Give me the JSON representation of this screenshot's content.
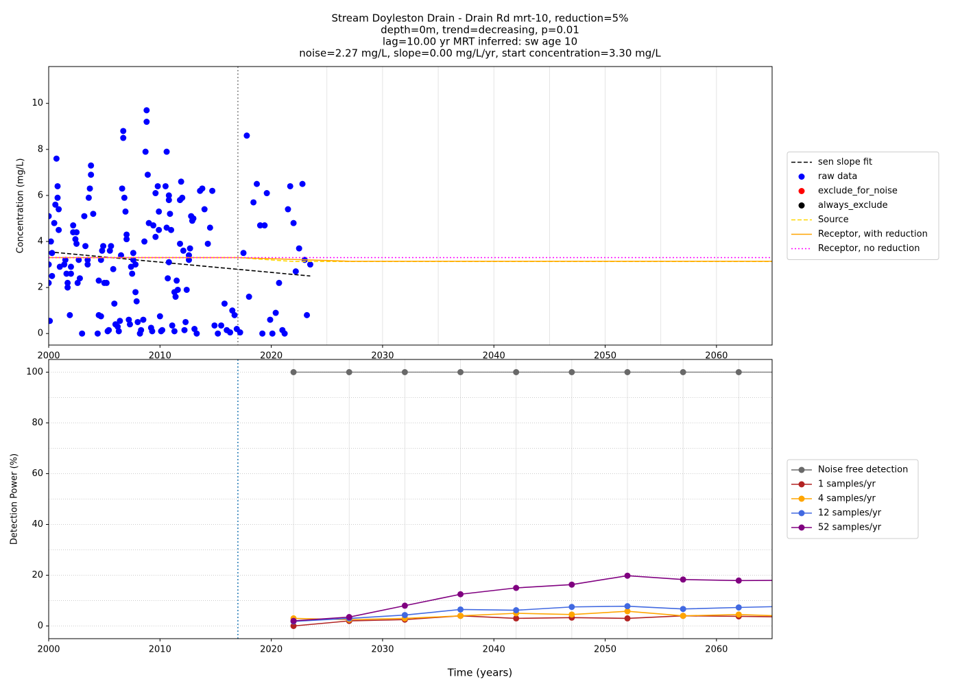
{
  "chart_data": [
    {
      "type": "scatter",
      "title": [
        "Stream Doyleston Drain - Drain Rd mrt-10, reduction=5%",
        "depth=0m, trend=decreasing, p=0.01",
        "lag=10.00 yr MRT inferred: sw age 10",
        "noise=2.27 mg/L, slope=0.00 mg/L/yr, start concentration=3.30 mg/L"
      ],
      "ylabel": "Concentration (mg/L)",
      "xlim": [
        2000,
        2065
      ],
      "ylim": [
        -0.5,
        11.6
      ],
      "xticks": [
        2000,
        2010,
        2020,
        2030,
        2040,
        2050,
        2060
      ],
      "yticks": [
        0,
        2,
        4,
        6,
        8,
        10
      ],
      "x_grid": [
        2025,
        2030,
        2035,
        2040,
        2045,
        2050,
        2055,
        2060
      ],
      "vline": {
        "x": 2017,
        "color": "#808080"
      },
      "legend_loc": "outside right",
      "series": [
        {
          "name": "sen slope fit",
          "style": "dashed",
          "color": "#000000",
          "x": [
            2000,
            2023.5
          ],
          "values": [
            3.55,
            2.5
          ]
        },
        {
          "name": "raw data",
          "style": "scatter",
          "color": "#0000ff",
          "x": [
            2000,
            2000,
            2000,
            2000.1,
            2000.2,
            2000.3,
            2000.3,
            2000.5,
            2000.6,
            2000.7,
            2000.8,
            2000.8,
            2000.9,
            2000.9,
            2001.0,
            2001.4,
            2001.5,
            2001.6,
            2001.7,
            2001.7,
            2001.9,
            2002.0,
            2002.0,
            2002.2,
            2002.2,
            2002.4,
            2002.5,
            2002.5,
            2002.6,
            2002.7,
            2002.8,
            2003.0,
            2003.2,
            2003.3,
            2003.5,
            2003.5,
            2003.6,
            2003.7,
            2003.8,
            2003.8,
            2004.0,
            2004.4,
            2004.5,
            2004.5,
            2004.7,
            2004.7,
            2004.8,
            2004.9,
            2005.0,
            2005.2,
            2005.3,
            2005.4,
            2005.5,
            2005.6,
            2005.8,
            2005.9,
            2006.0,
            2006.2,
            2006.3,
            2006.4,
            2006.5,
            2006.6,
            2006.7,
            2006.7,
            2006.8,
            2006.9,
            2007.0,
            2007.0,
            2007.2,
            2007.3,
            2007.4,
            2007.5,
            2007.6,
            2007.6,
            2007.8,
            2007.8,
            2007.9,
            2008.0,
            2008.2,
            2008.3,
            2008.5,
            2008.6,
            2008.7,
            2008.8,
            2008.8,
            2008.9,
            2009.0,
            2009.2,
            2009.3,
            2009.4,
            2009.6,
            2009.6,
            2009.8,
            2009.9,
            2009.9,
            2010.0,
            2010.1,
            2010.2,
            2010.5,
            2010.6,
            2010.6,
            2010.7,
            2010.8,
            2010.8,
            2010.8,
            2010.9,
            2011.0,
            2011.1,
            2011.3,
            2011.3,
            2011.4,
            2011.5,
            2011.6,
            2011.8,
            2011.8,
            2011.9,
            2012.0,
            2012.1,
            2012.2,
            2012.3,
            2012.4,
            2012.6,
            2012.6,
            2012.7,
            2012.8,
            2012.9,
            2013.0,
            2013.1,
            2013.3,
            2013.6,
            2013.8,
            2014.0,
            2014.3,
            2014.5,
            2014.7,
            2014.9,
            2015.2,
            2015.5,
            2015.8,
            2016.0,
            2016.3,
            2016.5,
            2016.7,
            2016.9,
            2017.2,
            2017.5,
            2017.8,
            2018.0,
            2018.4,
            2018.7,
            2019.0,
            2019.2,
            2019.4,
            2019.6,
            2019.9,
            2020.1,
            2020.4,
            2020.7,
            2021.0,
            2021.2,
            2021.5,
            2021.7,
            2022.0,
            2022.2,
            2022.5,
            2022.8,
            2023.0,
            2023.2,
            2023.5
          ],
          "values": [
            5.1,
            3.0,
            2.2,
            0.55,
            4.0,
            3.5,
            2.5,
            4.8,
            5.6,
            7.6,
            6.4,
            5.9,
            5.4,
            4.5,
            2.9,
            3.0,
            3.2,
            2.6,
            2.0,
            2.2,
            0.8,
            2.9,
            2.6,
            4.7,
            4.4,
            4.1,
            4.4,
            3.9,
            2.2,
            3.2,
            2.4,
            0.0,
            5.1,
            3.8,
            3.2,
            3.0,
            5.9,
            6.3,
            7.3,
            6.9,
            5.2,
            0.0,
            2.3,
            0.8,
            0.75,
            3.2,
            3.6,
            3.8,
            2.2,
            2.2,
            0.1,
            0.15,
            3.6,
            3.8,
            2.8,
            1.3,
            0.4,
            0.3,
            0.1,
            0.55,
            3.4,
            6.3,
            8.8,
            8.5,
            5.9,
            5.3,
            4.3,
            4.1,
            0.6,
            0.4,
            2.9,
            2.6,
            3.5,
            3.2,
            3.0,
            1.8,
            1.4,
            0.5,
            0.0,
            0.15,
            0.6,
            4.0,
            7.9,
            9.7,
            9.2,
            6.9,
            4.8,
            0.25,
            0.1,
            4.7,
            6.1,
            4.2,
            6.4,
            5.3,
            4.5,
            0.75,
            0.1,
            0.15,
            6.4,
            4.6,
            7.9,
            2.4,
            6.0,
            5.8,
            3.1,
            5.2,
            4.5,
            0.35,
            0.1,
            1.8,
            1.6,
            2.3,
            1.9,
            3.9,
            5.8,
            6.6,
            5.9,
            3.6,
            0.15,
            0.5,
            1.9,
            3.4,
            3.2,
            3.7,
            5.1,
            4.9,
            5.0,
            0.2,
            0.0,
            6.2,
            6.3,
            5.4,
            3.9,
            4.6,
            6.2,
            0.35,
            0.0,
            0.35,
            1.3,
            0.15,
            0.05,
            1.0,
            0.8,
            0.2,
            0.05,
            3.5,
            8.6,
            1.6,
            5.7,
            6.5,
            4.7,
            0.0,
            4.7,
            6.1,
            0.6,
            0.0,
            0.9,
            2.2,
            0.15,
            0.0,
            5.4,
            6.4,
            4.8,
            2.7,
            3.7,
            6.5,
            3.2,
            0.8,
            3.0
          ]
        },
        {
          "name": "exclude_for_noise",
          "style": "scatter",
          "color": "#ff0000",
          "x": [],
          "values": []
        },
        {
          "name": "always_exclude",
          "style": "scatter",
          "color": "#000000",
          "x": [],
          "values": []
        },
        {
          "name": "Source",
          "style": "dashed",
          "color": "#ffd700",
          "x": [
            2000,
            2017,
            2022,
            2065
          ],
          "values": [
            3.3,
            3.3,
            3.13,
            3.13
          ]
        },
        {
          "name": "Receptor, with reduction",
          "style": "solid",
          "color": "#ffa500",
          "x": [
            2000,
            2017,
            2027,
            2065
          ],
          "values": [
            3.3,
            3.3,
            3.14,
            3.14
          ]
        },
        {
          "name": "Receptor, no reduction",
          "style": "dotted",
          "color": "#ff00ff",
          "x": [
            2000,
            2065
          ],
          "values": [
            3.3,
            3.3
          ]
        }
      ]
    },
    {
      "type": "line",
      "xlabel": "Time (years)",
      "ylabel": "Detection Power (%)",
      "xlim": [
        2000,
        2065
      ],
      "ylim": [
        -5,
        105
      ],
      "xticks": [
        2000,
        2010,
        2020,
        2030,
        2040,
        2050,
        2060
      ],
      "yticks": [
        0,
        20,
        40,
        60,
        80,
        100
      ],
      "x_grid": [
        2022,
        2027,
        2032,
        2037,
        2042,
        2047,
        2052,
        2057,
        2062
      ],
      "y_grid": [
        0,
        10,
        20,
        30,
        40,
        50,
        60,
        70,
        80,
        90,
        100
      ],
      "vline": {
        "x": 2017,
        "color": "#1f77b4"
      },
      "legend_loc": "outside right",
      "x": [
        2022,
        2027,
        2032,
        2037,
        2042,
        2047,
        2052,
        2057,
        2062,
        2067
      ],
      "series": [
        {
          "name": "Noise free detection",
          "style": "solid",
          "marker": true,
          "color": "#696969",
          "values": [
            100,
            100,
            100,
            100,
            100,
            100,
            100,
            100,
            100,
            100
          ]
        },
        {
          "name": "1 samples/yr",
          "style": "solid",
          "marker": true,
          "color": "#b22222",
          "values": [
            0,
            2,
            2.5,
            4,
            3,
            3.3,
            3,
            4,
            3.8,
            3.5
          ]
        },
        {
          "name": "4 samples/yr",
          "style": "solid",
          "marker": true,
          "color": "#ffa500",
          "values": [
            3,
            2.5,
            3,
            4,
            5,
            4.5,
            5.8,
            4,
            4.5,
            3.8
          ]
        },
        {
          "name": "12 samples/yr",
          "style": "solid",
          "marker": true,
          "color": "#4169e1",
          "values": [
            1.8,
            3,
            4.3,
            6.5,
            6.2,
            7.5,
            7.8,
            6.7,
            7.3,
            7.8
          ]
        },
        {
          "name": "52 samples/yr",
          "style": "solid",
          "marker": true,
          "color": "#800080",
          "values": [
            2,
            3.5,
            8,
            12.5,
            15,
            16.3,
            19.8,
            18.3,
            17.9,
            18
          ]
        }
      ]
    }
  ]
}
